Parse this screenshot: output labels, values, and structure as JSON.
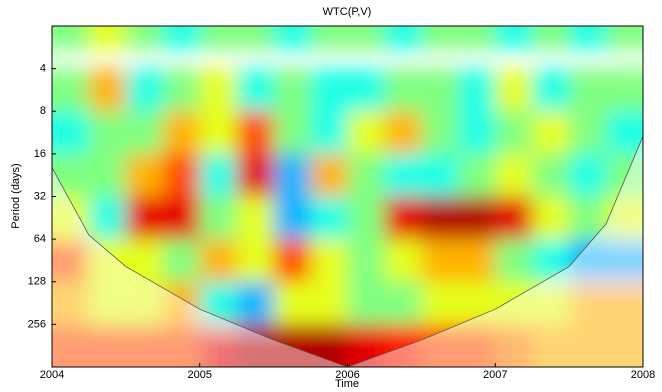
{
  "chart_data": {
    "type": "heatmap",
    "title": "WTC(P,V)",
    "x_label": "Time",
    "y_label": "Period (days)",
    "xlim": [
      2004,
      2008
    ],
    "xticks": [
      2004,
      2005,
      2006,
      2007,
      2008
    ],
    "ylim": [
      2,
      512
    ],
    "yticks": [
      4,
      8,
      16,
      32,
      64,
      128,
      256
    ],
    "log_y": true,
    "colormap": "jet",
    "x": [
      2004,
      2004.25,
      2004.5,
      2004.75,
      2005,
      2005.25,
      2005.5,
      2005.75,
      2006,
      2006.25,
      2006.5,
      2006.75,
      2007,
      2007.25,
      2007.5,
      2007.75
    ],
    "y": [
      2,
      4,
      8,
      16,
      32,
      64,
      128,
      256
    ],
    "values": [
      [
        0.5,
        0.6,
        0.5,
        0.4,
        0.5,
        0.5,
        0.4,
        0.5,
        0.5,
        0.4,
        0.5,
        0.5,
        0.4,
        0.5,
        0.4,
        0.5
      ],
      [
        0.5,
        0.7,
        0.4,
        0.5,
        0.6,
        0.4,
        0.5,
        0.4,
        0.4,
        0.5,
        0.5,
        0.4,
        0.6,
        0.4,
        0.5,
        0.5
      ],
      [
        0.4,
        0.5,
        0.5,
        0.7,
        0.6,
        0.8,
        0.5,
        0.4,
        0.6,
        0.7,
        0.5,
        0.4,
        0.5,
        0.6,
        0.5,
        0.4
      ],
      [
        0.5,
        0.5,
        0.7,
        0.8,
        0.4,
        0.9,
        0.3,
        0.7,
        0.5,
        0.4,
        0.4,
        0.5,
        0.6,
        0.5,
        0.4,
        0.5
      ],
      [
        0.6,
        0.4,
        0.9,
        0.9,
        0.5,
        0.6,
        0.3,
        0.4,
        0.5,
        0.9,
        0.95,
        0.95,
        0.9,
        0.6,
        0.5,
        0.6
      ],
      [
        0.8,
        0.6,
        0.6,
        0.5,
        0.7,
        0.6,
        0.8,
        0.6,
        0.5,
        0.6,
        0.7,
        0.7,
        0.5,
        0.4,
        0.3,
        0.3
      ],
      [
        0.7,
        0.6,
        0.6,
        0.7,
        0.4,
        0.3,
        0.6,
        0.6,
        0.5,
        0.5,
        0.6,
        0.6,
        0.6,
        0.6,
        0.7,
        0.7
      ],
      [
        0.8,
        0.8,
        0.8,
        0.8,
        0.9,
        0.95,
        0.95,
        0.95,
        0.9,
        0.85,
        0.8,
        0.8,
        0.75,
        0.7,
        0.7,
        0.7
      ]
    ],
    "coi": {
      "x": [
        2004,
        2004.25,
        2004.5,
        2005,
        2005.5,
        2006,
        2006.5,
        2007,
        2007.5,
        2007.75,
        2008
      ],
      "period": [
        20,
        60,
        100,
        200,
        330,
        512,
        330,
        200,
        100,
        50,
        12
      ]
    }
  }
}
